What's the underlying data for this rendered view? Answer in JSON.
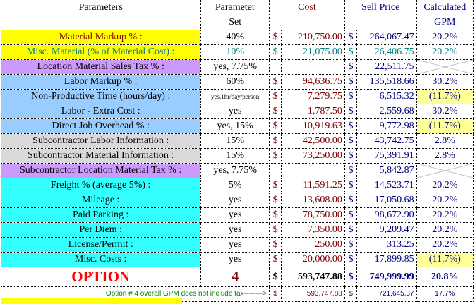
{
  "header": {
    "parameters": "Parameters",
    "param_set_line1": "Parameter",
    "param_set_line2": "Set",
    "cost": "Cost",
    "sell_price": "Sell Price",
    "gpm_line1": "Calculated",
    "gpm_line2": "GPM"
  },
  "rows": [
    {
      "label": "Material Markup % :",
      "set": "40%",
      "cost_sign": "$",
      "cost": "210,750.00",
      "sell_sign": "$",
      "sell": "264,067.47",
      "gpm": "20.2%"
    },
    {
      "label": "Misc. Material (% of Material Cost) :",
      "set": "10%",
      "cost_sign": "$",
      "cost": "21,075.00",
      "sell_sign": "$",
      "sell": "26,406.75",
      "gpm": "20.2%"
    },
    {
      "label": "Location Material Sales Tax % :",
      "set": "yes, 7.75%",
      "cost_sign": "",
      "cost": "",
      "sell_sign": "$",
      "sell": "22,511.75",
      "gpm": ""
    },
    {
      "label": "Labor Markup % :",
      "set": "60%",
      "cost_sign": "$",
      "cost": "94,636.75",
      "sell_sign": "$",
      "sell": "135,518.66",
      "gpm": "30.2%"
    },
    {
      "label": "Non-Productive Time (hours/day) :",
      "set": "yes,1hr/day/person",
      "cost_sign": "$",
      "cost": "7,279.75",
      "sell_sign": "$",
      "sell": "6,515.32",
      "gpm": "(11.7%)"
    },
    {
      "label": "Labor - Extra Cost :",
      "set": "yes",
      "cost_sign": "$",
      "cost": "1,787.50",
      "sell_sign": "$",
      "sell": "2,559.68",
      "gpm": "30.2%"
    },
    {
      "label": "Direct Job Overhead % :",
      "set": "yes, 15%",
      "cost_sign": "$",
      "cost": "10,919.63",
      "sell_sign": "$",
      "sell": "9,772.98",
      "gpm": "(11.7%)"
    },
    {
      "label": "Subcontractor Labor Information :",
      "set": "15%",
      "cost_sign": "$",
      "cost": "42,500.00",
      "sell_sign": "$",
      "sell": "43,742.75",
      "gpm": "2.8%"
    },
    {
      "label": "Subcontractor Material Information :",
      "set": "15%",
      "cost_sign": "$",
      "cost": "73,250.00",
      "sell_sign": "$",
      "sell": "75,391.91",
      "gpm": "2.8%"
    },
    {
      "label": "Subcontractor Location Material Tax % :",
      "set": "yes, 7.75%",
      "cost_sign": "",
      "cost": "",
      "sell_sign": "$",
      "sell": "5,842.87",
      "gpm": ""
    },
    {
      "label": "Freight % (average 5%) :",
      "set": "5%",
      "cost_sign": "$",
      "cost": "11,591.25",
      "sell_sign": "$",
      "sell": "14,523.71",
      "gpm": "20.2%"
    },
    {
      "label": "Mileage :",
      "set": "yes",
      "cost_sign": "$",
      "cost": "13,608.00",
      "sell_sign": "$",
      "sell": "17,050.68",
      "gpm": "20.2%"
    },
    {
      "label": "Paid Parking :",
      "set": "yes",
      "cost_sign": "$",
      "cost": "78,750.00",
      "sell_sign": "$",
      "sell": "98,672.90",
      "gpm": "20.2%"
    },
    {
      "label": "Per Diem :",
      "set": "yes",
      "cost_sign": "$",
      "cost": "7,350.00",
      "sell_sign": "$",
      "sell": "9,209.47",
      "gpm": "20.2%"
    },
    {
      "label": "License/Permit :",
      "set": "yes",
      "cost_sign": "$",
      "cost": "250.00",
      "sell_sign": "$",
      "sell": "313.25",
      "gpm": "20.2%"
    },
    {
      "label": "Misc. Costs :",
      "set": "yes",
      "cost_sign": "$",
      "cost": "20,000.00",
      "sell_sign": "$",
      "sell": "17,899.85",
      "gpm": "(11.7%)"
    }
  ],
  "option": {
    "label": "OPTION",
    "number": "4",
    "cost_sign": "$",
    "cost": "593,747.88",
    "sell_sign": "$",
    "sell": "749,999.99",
    "gpm": "20.8%"
  },
  "note": {
    "text": "Option # 4 overall GPM does not include tax-------->",
    "cost_sign": "$",
    "cost": "593,747.88",
    "sell_sign": "$",
    "sell": "721,645.37",
    "gpm": "17.7%"
  },
  "colors": {
    "yellow": "#ffff00",
    "light_yellow": "#ffff99",
    "purple": "#cc99ff",
    "blue": "#99ccff",
    "gray": "#d9d9d9",
    "cyan": "#33ffff",
    "dark_red": "#800000",
    "navy": "#000080",
    "teal": "#008080",
    "red": "#ff0000",
    "green": "#008000"
  }
}
